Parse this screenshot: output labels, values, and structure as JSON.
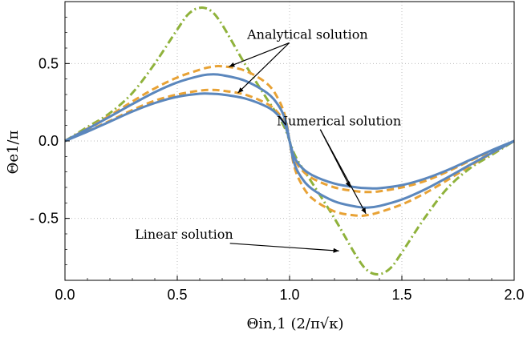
{
  "chart_data": {
    "type": "line",
    "xlabel": "Θin,1 (2/π√κ)",
    "ylabel": "Θe1/π",
    "xlim": [
      0.0,
      2.0
    ],
    "ylim": [
      -0.9,
      0.9
    ],
    "x_ticks": [
      0.0,
      0.5,
      1.0,
      1.5,
      2.0
    ],
    "x_tick_labels": [
      "0.0",
      "0.5",
      "1.0",
      "1.5",
      "2.0"
    ],
    "y_ticks": [
      0.5,
      0.0,
      -0.5
    ],
    "y_tick_labels": [
      "0.5",
      "0.0",
      "- 0.5"
    ],
    "grid": "dotted",
    "colors": {
      "numerical": "#5b87bd",
      "analytical": "#e8a235",
      "linear": "#8fb23b"
    },
    "series": [
      {
        "style": "solid",
        "color": "#5b87bd",
        "x": [
          0,
          0.1,
          0.2,
          0.3,
          0.4,
          0.5,
          0.6,
          0.65,
          0.7,
          0.8,
          0.9,
          0.95,
          0.98,
          1.0,
          1.02,
          1.05,
          1.1,
          1.2,
          1.3,
          1.35,
          1.4,
          1.5,
          1.6,
          1.7,
          1.8,
          1.9,
          2.0
        ],
        "y": [
          0,
          0.077,
          0.157,
          0.238,
          0.315,
          0.378,
          0.42,
          0.43,
          0.425,
          0.39,
          0.31,
          0.23,
          0.14,
          0,
          -0.14,
          -0.23,
          -0.31,
          -0.39,
          -0.425,
          -0.43,
          -0.42,
          -0.378,
          -0.315,
          -0.238,
          -0.157,
          -0.077,
          0
        ]
      },
      {
        "style": "solid",
        "color": "#5b87bd",
        "x": [
          0,
          0.1,
          0.2,
          0.3,
          0.4,
          0.5,
          0.6,
          0.65,
          0.7,
          0.8,
          0.9,
          0.95,
          0.98,
          1.0,
          1.02,
          1.05,
          1.1,
          1.2,
          1.3,
          1.35,
          1.4,
          1.5,
          1.6,
          1.7,
          1.8,
          1.9,
          2.0
        ],
        "y": [
          0,
          0.06,
          0.125,
          0.19,
          0.245,
          0.285,
          0.305,
          0.305,
          0.3,
          0.275,
          0.22,
          0.165,
          0.1,
          0,
          -0.1,
          -0.165,
          -0.22,
          -0.275,
          -0.3,
          -0.305,
          -0.305,
          -0.285,
          -0.245,
          -0.19,
          -0.125,
          -0.06,
          0
        ]
      },
      {
        "style": "dashed",
        "color": "#e8a235",
        "x": [
          0,
          0.1,
          0.2,
          0.3,
          0.4,
          0.5,
          0.6,
          0.65,
          0.7,
          0.8,
          0.9,
          0.95,
          0.98,
          1.0,
          1.02,
          1.05,
          1.1,
          1.2,
          1.3,
          1.35,
          1.4,
          1.5,
          1.6,
          1.7,
          1.8,
          1.9,
          2.0
        ],
        "y": [
          0,
          0.08,
          0.165,
          0.255,
          0.34,
          0.41,
          0.46,
          0.478,
          0.482,
          0.455,
          0.37,
          0.27,
          0.16,
          0,
          -0.16,
          -0.27,
          -0.37,
          -0.455,
          -0.482,
          -0.478,
          -0.46,
          -0.41,
          -0.34,
          -0.255,
          -0.165,
          -0.08,
          0
        ]
      },
      {
        "style": "dashed",
        "color": "#e8a235",
        "x": [
          0,
          0.1,
          0.2,
          0.3,
          0.4,
          0.5,
          0.6,
          0.65,
          0.7,
          0.8,
          0.9,
          0.95,
          0.98,
          1.0,
          1.02,
          1.05,
          1.1,
          1.2,
          1.3,
          1.35,
          1.4,
          1.5,
          1.6,
          1.7,
          1.8,
          1.9,
          2.0
        ],
        "y": [
          0,
          0.065,
          0.13,
          0.2,
          0.26,
          0.3,
          0.325,
          0.33,
          0.325,
          0.3,
          0.24,
          0.18,
          0.11,
          0,
          -0.11,
          -0.18,
          -0.24,
          -0.3,
          -0.325,
          -0.33,
          -0.325,
          -0.3,
          -0.26,
          -0.2,
          -0.13,
          -0.065,
          0
        ]
      },
      {
        "style": "dashdot",
        "color": "#8fb23b",
        "x": [
          0,
          0.1,
          0.2,
          0.3,
          0.4,
          0.5,
          0.55,
          0.6,
          0.65,
          0.7,
          0.8,
          0.9,
          0.95,
          0.98,
          1.0,
          1.02,
          1.05,
          1.1,
          1.2,
          1.3,
          1.35,
          1.4,
          1.45,
          1.5,
          1.6,
          1.7,
          1.8,
          1.9,
          2.0
        ],
        "y": [
          0,
          0.09,
          0.18,
          0.31,
          0.5,
          0.72,
          0.82,
          0.86,
          0.84,
          0.75,
          0.5,
          0.27,
          0.16,
          0.08,
          0,
          -0.08,
          -0.16,
          -0.27,
          -0.5,
          -0.75,
          -0.84,
          -0.86,
          -0.82,
          -0.72,
          -0.5,
          -0.31,
          -0.18,
          -0.09,
          0
        ]
      }
    ],
    "annotations": [
      {
        "text": "Analytical solution",
        "x": 1.08,
        "y": 0.66,
        "arrows_to": [
          [
            0.73,
            0.48
          ],
          [
            0.77,
            0.31
          ]
        ]
      },
      {
        "text": "Numerical solution",
        "x": 1.22,
        "y": 0.1,
        "arrows_to": [
          [
            1.27,
            -0.3
          ],
          [
            1.34,
            -0.47
          ]
        ]
      },
      {
        "text": "Linear solution",
        "x": 0.53,
        "y": -0.63,
        "arrows_to": [
          [
            1.22,
            -0.71
          ]
        ]
      }
    ]
  }
}
